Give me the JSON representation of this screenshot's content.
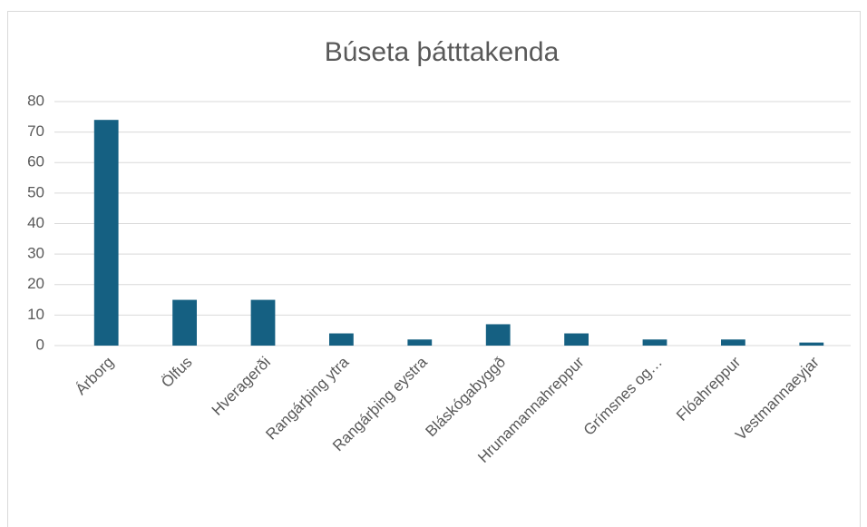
{
  "chart_data": {
    "type": "bar",
    "title": "Búseta þátttakenda",
    "categories": [
      "Árborg",
      "Ölfus",
      "Hveragerði",
      "Rangárþing ytra",
      "Rangárþing eystra",
      "Bláskógabyggð",
      "Hrunamannahreppur",
      "Grímsnes og…",
      "Flóahreppur",
      "Vestmannaeyjar"
    ],
    "values": [
      74,
      15,
      15,
      4,
      2,
      7,
      4,
      2,
      2,
      1
    ],
    "color": "#156082",
    "ylim": [
      0,
      80
    ],
    "yticks": [
      0,
      10,
      20,
      30,
      40,
      50,
      60,
      70,
      80
    ],
    "grid": true
  }
}
